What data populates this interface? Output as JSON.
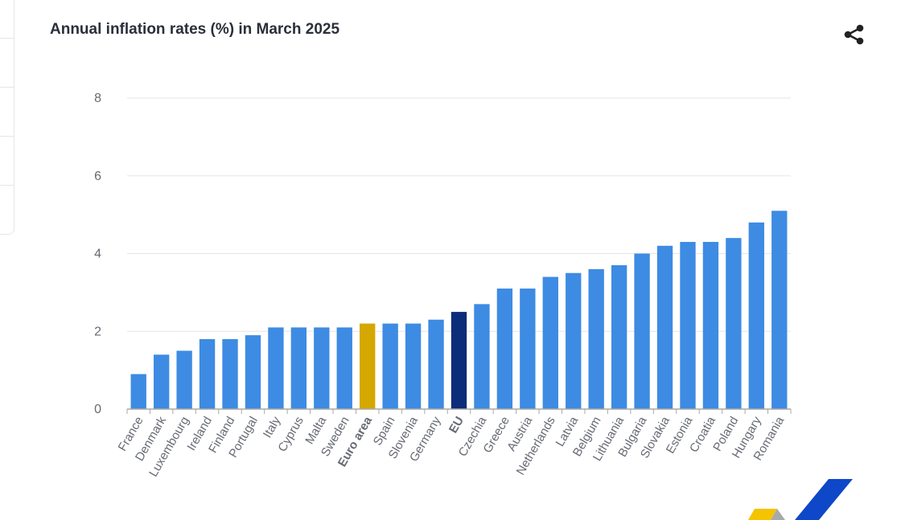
{
  "title": "Annual inflation rates (%) in March 2025",
  "icons": {
    "share": "share-icon",
    "logo": "eurostat-logo-mark"
  },
  "colors": {
    "bar": "#3d8be3",
    "euro_area": "#d4a800",
    "eu": "#0d2d7a",
    "grid": "#e6e6e6",
    "axis": "#a9a9a9"
  },
  "chart_data": {
    "type": "bar",
    "title": "Annual inflation rates (%) in March 2025",
    "xlabel": "",
    "ylabel": "",
    "ylim": [
      0,
      8
    ],
    "yticks": [
      "0",
      "2",
      "4",
      "6",
      "8"
    ],
    "grid": true,
    "legend": "none",
    "highlighted": [
      "Euro area",
      "EU"
    ],
    "categories": [
      "France",
      "Denmark",
      "Luxembourg",
      "Ireland",
      "Finland",
      "Portugal",
      "Italy",
      "Cyprus",
      "Malta",
      "Sweden",
      "Euro area",
      "Spain",
      "Slovenia",
      "Germany",
      "EU",
      "Czechia",
      "Greece",
      "Austria",
      "Netherlands",
      "Latvia",
      "Belgium",
      "Lithuania",
      "Bulgaria",
      "Slovakia",
      "Estonia",
      "Croatia",
      "Poland",
      "Hungary",
      "Romania"
    ],
    "values": [
      0.9,
      1.4,
      1.5,
      1.8,
      1.8,
      1.9,
      2.1,
      2.1,
      2.1,
      2.1,
      2.2,
      2.2,
      2.2,
      2.3,
      2.5,
      2.7,
      3.1,
      3.1,
      3.4,
      3.5,
      3.6,
      3.7,
      4.0,
      4.2,
      4.3,
      4.3,
      4.4,
      4.8,
      5.1
    ]
  }
}
